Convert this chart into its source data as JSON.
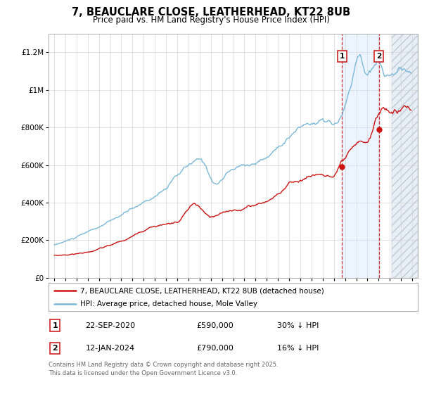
{
  "title_line1": "7, BEAUCLARE CLOSE, LEATHERHEAD, KT22 8UB",
  "title_line2": "Price paid vs. HM Land Registry's House Price Index (HPI)",
  "ylabel_ticks": [
    "£0",
    "£200K",
    "£400K",
    "£600K",
    "£800K",
    "£1M",
    "£1.2M"
  ],
  "ytick_values": [
    0,
    200000,
    400000,
    600000,
    800000,
    1000000,
    1200000
  ],
  "ylim": [
    0,
    1300000
  ],
  "xlim_start": 1995,
  "xlim_end": 2027,
  "hpi_color": "#7ab8d9",
  "price_color": "#cc1111",
  "marker1_x": 2020.72,
  "marker1_price": 590000,
  "marker2_x": 2024.04,
  "marker2_price": 790000,
  "future_start": 2025.17,
  "shade_color": "#ddeeff",
  "legend_line1": "7, BEAUCLARE CLOSE, LEATHERHEAD, KT22 8UB (detached house)",
  "legend_line2": "HPI: Average price, detached house, Mole Valley",
  "row1_date": "22-SEP-2020",
  "row1_price": "£590,000",
  "row1_hpi": "30% ↓ HPI",
  "row2_date": "12-JAN-2024",
  "row2_price": "£790,000",
  "row2_hpi": "16% ↓ HPI",
  "footer": "Contains HM Land Registry data © Crown copyright and database right 2025.\nThis data is licensed under the Open Government Licence v3.0.",
  "bg_color": "#f5f5f5"
}
